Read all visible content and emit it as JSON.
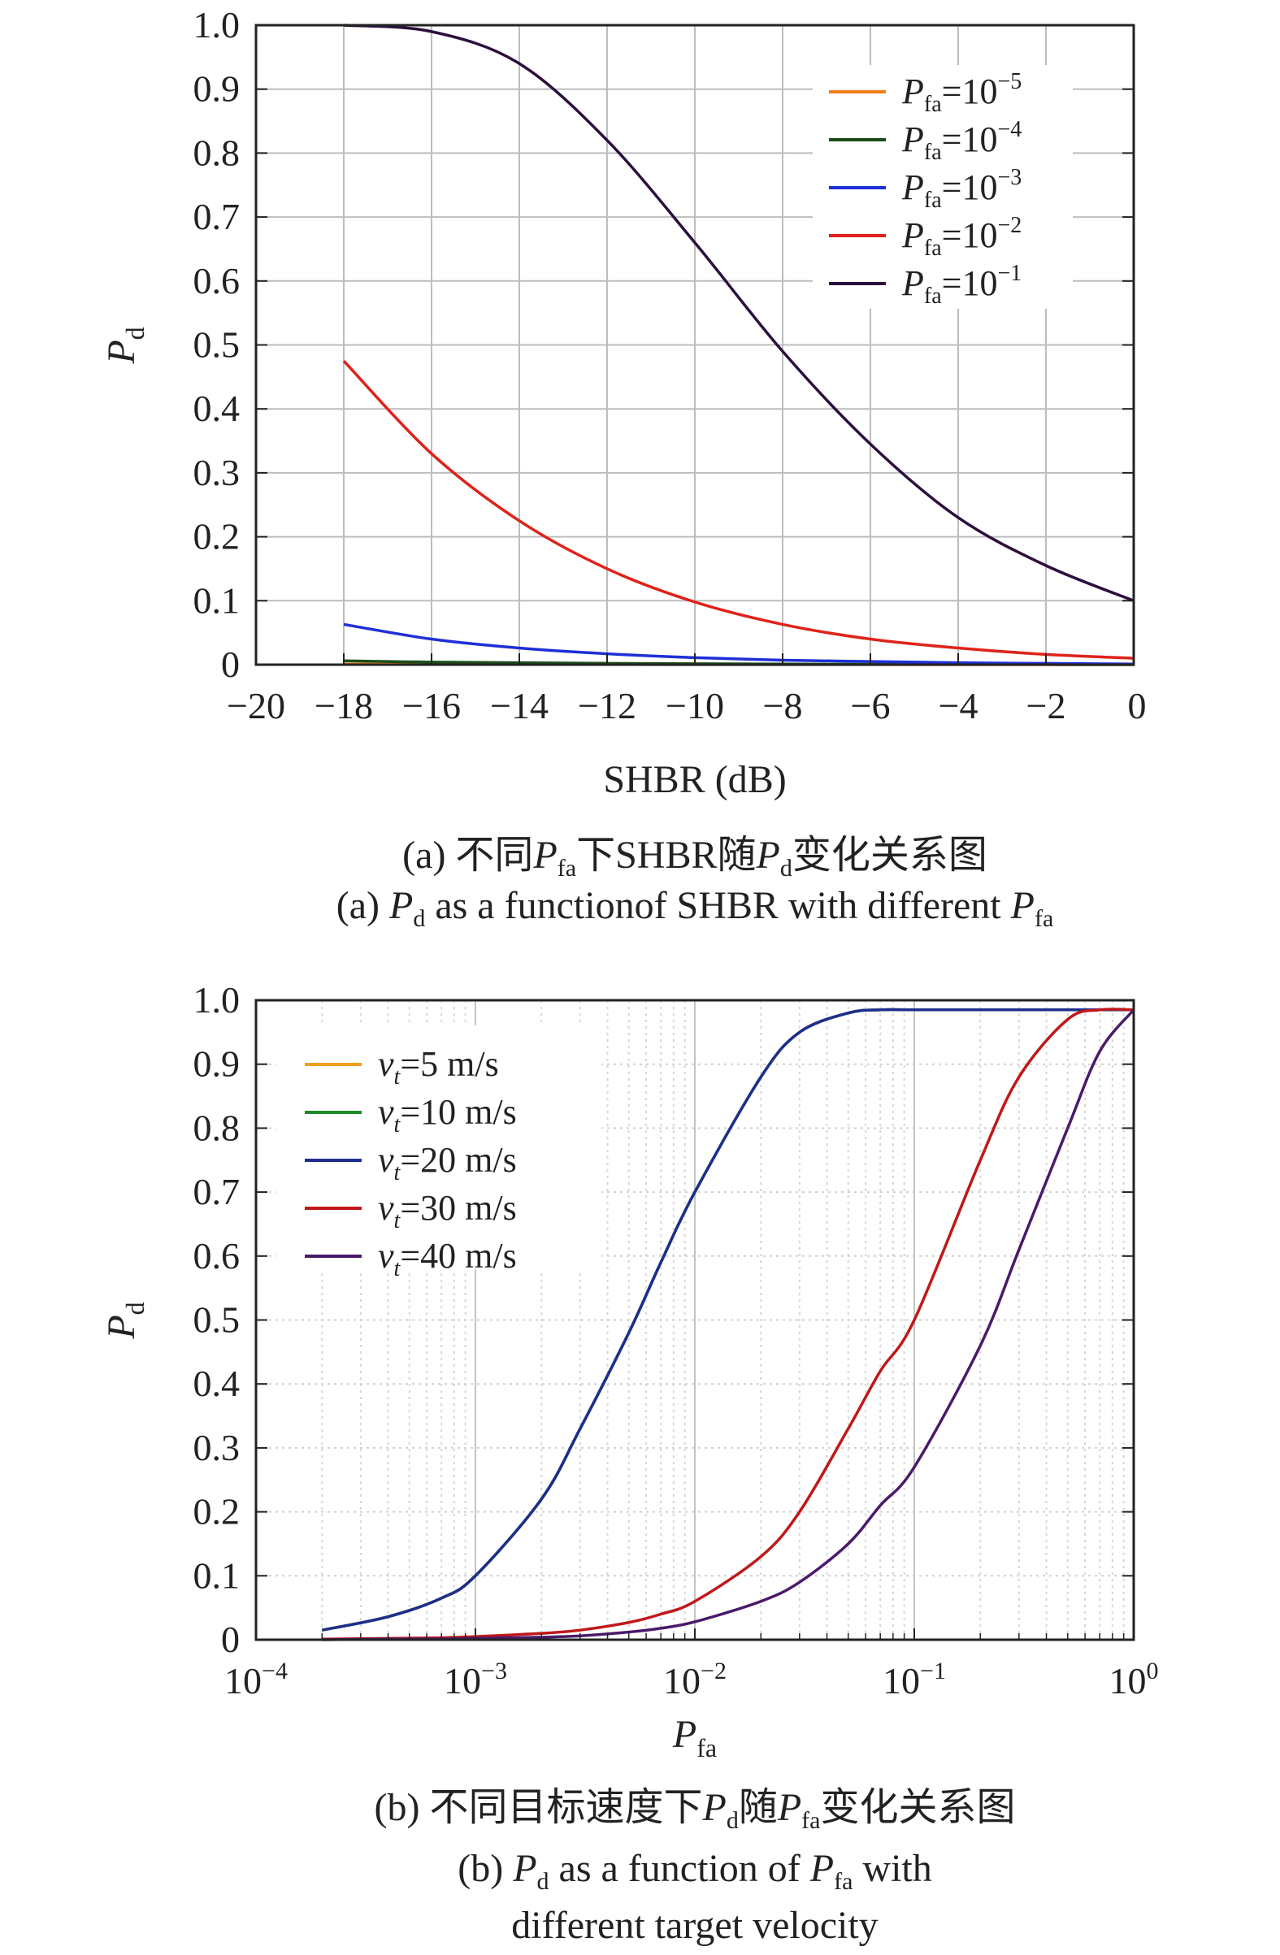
{
  "chart_data": [
    {
      "type": "line",
      "xlabel": "SHBR (dB)",
      "ylabel": "P_d",
      "xlim": [
        -20,
        0
      ],
      "ylim": [
        0,
        1.0
      ],
      "xticks": [
        "−20",
        "−18",
        "−16",
        "−14",
        "−12",
        "−10",
        "−8",
        "−6",
        "−4",
        "−2",
        "0"
      ],
      "yticks": [
        "0",
        "0.1",
        "0.2",
        "0.3",
        "0.4",
        "0.5",
        "0.6",
        "0.7",
        "0.8",
        "0.9",
        "1.0"
      ],
      "grid": true,
      "legend_position": "top-right",
      "x": [
        -18,
        -16,
        -14,
        -12,
        -10,
        -8,
        -6,
        -4,
        -2,
        0
      ],
      "series": [
        {
          "name": "Pfa=10^-5",
          "legend_main": "P",
          "legend_sub": "fa",
          "legend_eq": "=10",
          "legend_exp": "−5",
          "color": "#f07f1a",
          "values": [
            0.001,
            0.0007,
            0.0005,
            0.0003,
            0.0002,
            0.0001,
            0.0001,
            0.0,
            0.0,
            0.0
          ]
        },
        {
          "name": "Pfa=10^-4",
          "legend_main": "P",
          "legend_sub": "fa",
          "legend_eq": "=10",
          "legend_exp": "−4",
          "color": "#1a4d1a",
          "values": [
            0.006,
            0.004,
            0.003,
            0.002,
            0.0015,
            0.001,
            0.0007,
            0.0005,
            0.0003,
            0.0001
          ]
        },
        {
          "name": "Pfa=10^-3",
          "legend_main": "P",
          "legend_sub": "fa",
          "legend_eq": "=10",
          "legend_exp": "−3",
          "color": "#1f2fd6",
          "values": [
            0.063,
            0.04,
            0.026,
            0.017,
            0.011,
            0.007,
            0.005,
            0.003,
            0.002,
            0.001
          ]
        },
        {
          "name": "Pfa=10^-2",
          "legend_main": "P",
          "legend_sub": "fa",
          "legend_eq": "=10",
          "legend_exp": "−2",
          "color": "#e0221a",
          "values": [
            0.475,
            0.33,
            0.225,
            0.15,
            0.098,
            0.063,
            0.04,
            0.026,
            0.016,
            0.01
          ]
        },
        {
          "name": "Pfa=10^-1",
          "legend_main": "P",
          "legend_sub": "fa",
          "legend_eq": "=10",
          "legend_exp": "−1",
          "color": "#2c0f3e",
          "values": [
            1.0,
            0.99,
            0.94,
            0.82,
            0.66,
            0.49,
            0.345,
            0.23,
            0.155,
            0.1
          ]
        }
      ]
    },
    {
      "type": "line",
      "x_scale": "log",
      "xlabel": "P_fa",
      "ylabel": "P_d",
      "xlim": [
        0.0001,
        1
      ],
      "ylim": [
        0,
        1.0
      ],
      "xticks": [
        {
          "base": "10",
          "exp": "−4"
        },
        {
          "base": "10",
          "exp": "−3"
        },
        {
          "base": "10",
          "exp": "−2"
        },
        {
          "base": "10",
          "exp": "−1"
        },
        {
          "base": "10",
          "exp": "0"
        }
      ],
      "yticks": [
        "0",
        "0.1",
        "0.2",
        "0.3",
        "0.4",
        "0.5",
        "0.6",
        "0.7",
        "0.8",
        "0.9",
        "1.0"
      ],
      "grid": true,
      "legend_position": "top-left",
      "x": [
        0.0002,
        0.0004,
        0.0007,
        0.001,
        0.002,
        0.003,
        0.005,
        0.007,
        0.01,
        0.02,
        0.03,
        0.05,
        0.07,
        0.1,
        0.2,
        0.3,
        0.5,
        0.7,
        1.0
      ],
      "series": [
        {
          "name": "vt=5 m/s",
          "legend_main": "v",
          "legend_sub": "t",
          "legend_rest": "=5 m/s",
          "color": "#f0a020",
          "values": [
            0.015,
            0.036,
            0.065,
            0.1,
            0.22,
            0.33,
            0.48,
            0.59,
            0.7,
            0.88,
            0.95,
            0.98,
            0.985,
            0.985,
            0.985,
            0.985,
            0.985,
            0.985,
            0.985
          ]
        },
        {
          "name": "vt=10 m/s",
          "legend_main": "v",
          "legend_sub": "t",
          "legend_rest": "=10 m/s",
          "color": "#1f8a2a",
          "values": [
            0.015,
            0.036,
            0.065,
            0.1,
            0.22,
            0.33,
            0.48,
            0.59,
            0.7,
            0.88,
            0.95,
            0.98,
            0.985,
            0.985,
            0.985,
            0.985,
            0.985,
            0.985,
            0.985
          ]
        },
        {
          "name": "vt=20 m/s",
          "legend_main": "v",
          "legend_sub": "t",
          "legend_rest": "=20 m/s",
          "color": "#1e2e8e",
          "values": [
            0.015,
            0.036,
            0.065,
            0.1,
            0.22,
            0.33,
            0.48,
            0.59,
            0.7,
            0.88,
            0.95,
            0.98,
            0.985,
            0.985,
            0.985,
            0.985,
            0.985,
            0.985,
            0.985
          ]
        },
        {
          "name": "vt=30 m/s",
          "legend_main": "v",
          "legend_sub": "t",
          "legend_rest": "=30 m/s",
          "color": "#c0181a",
          "values": [
            0.001,
            0.002,
            0.003,
            0.005,
            0.01,
            0.015,
            0.027,
            0.04,
            0.06,
            0.13,
            0.2,
            0.33,
            0.42,
            0.5,
            0.75,
            0.88,
            0.97,
            0.985,
            0.985
          ]
        },
        {
          "name": "vt=40 m/s",
          "legend_main": "v",
          "legend_sub": "t",
          "legend_rest": "=40 m/s",
          "color": "#4a1a6a",
          "values": [
            0.0,
            0.001,
            0.001,
            0.002,
            0.004,
            0.006,
            0.012,
            0.018,
            0.028,
            0.06,
            0.09,
            0.15,
            0.21,
            0.27,
            0.46,
            0.61,
            0.8,
            0.92,
            0.985
          ]
        }
      ]
    }
  ],
  "captions": {
    "a_cn": {
      "pre": "(a) 不同",
      "P1": "P",
      "s1": "fa",
      "mid": "下SHBR随",
      "P2": "P",
      "s2": "d",
      "post": "变化关系图"
    },
    "a_en": {
      "pre": "(a) ",
      "P1": "P",
      "s1": "d",
      "mid": " as a functionof SHBR with different ",
      "P2": "P",
      "s2": "fa"
    },
    "b_cn": {
      "pre": "(b) 不同目标速度下",
      "P1": "P",
      "s1": "d",
      "mid": "随",
      "P2": "P",
      "s2": "fa",
      "post": "变化关系图"
    },
    "b_en1": {
      "pre": "(b) ",
      "P1": "P",
      "s1": "d",
      "mid": " as a function of ",
      "P2": "P",
      "s2": "fa",
      "post": " with"
    },
    "b_en2": "different target velocity",
    "axis_sym": {
      "P": "P",
      "d": "d",
      "fa": "fa"
    }
  }
}
